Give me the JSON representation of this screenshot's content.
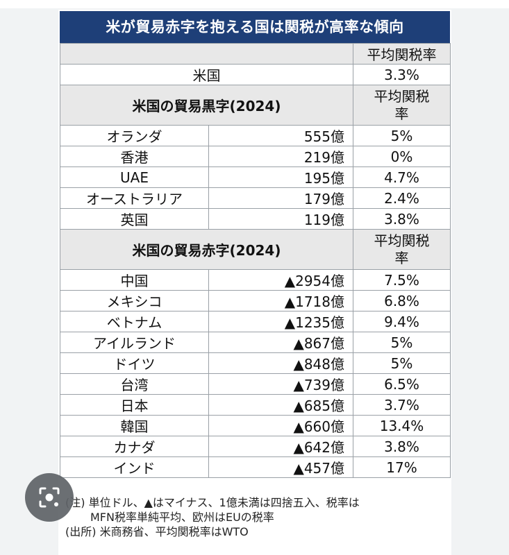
{
  "title": "米が貿易赤字を抱える国は関税が高率な傾向",
  "top_header": {
    "rate_label": "平均関税率"
  },
  "us_row": {
    "name": "米国",
    "rate": "3.3%"
  },
  "surplus_section": {
    "title": "米国の貿易黒字(2024)",
    "rate_label_1": "平均関税",
    "rate_label_2": "率",
    "rows": [
      {
        "country": "オランダ",
        "value": "555億",
        "rate": "5%"
      },
      {
        "country": "香港",
        "value": "219億",
        "rate": "0%"
      },
      {
        "country": "UAE",
        "value": "195億",
        "rate": "4.7%"
      },
      {
        "country": "オーストラリア",
        "value": "179億",
        "rate": "2.4%"
      },
      {
        "country": "英国",
        "value": "119億",
        "rate": "3.8%"
      }
    ]
  },
  "deficit_section": {
    "title": "米国の貿易赤字(2024)",
    "rate_label_1": "平均関税",
    "rate_label_2": "率",
    "rows": [
      {
        "country": "中国",
        "value": "▲2954億",
        "rate": "7.5%"
      },
      {
        "country": "メキシコ",
        "value": "▲1718億",
        "rate": "6.8%"
      },
      {
        "country": "ベトナム",
        "value": "▲1235億",
        "rate": "9.4%"
      },
      {
        "country": "アイルランド",
        "value": "▲867億",
        "rate": "5%"
      },
      {
        "country": "ドイツ",
        "value": "▲848億",
        "rate": "5%"
      },
      {
        "country": "台湾",
        "value": "▲739億",
        "rate": "6.5%"
      },
      {
        "country": "日本",
        "value": "▲685億",
        "rate": "3.7%"
      },
      {
        "country": "韓国",
        "value": "▲660億",
        "rate": "13.4%"
      },
      {
        "country": "カナダ",
        "value": "▲642億",
        "rate": "3.8%"
      },
      {
        "country": "インド",
        "value": "▲457億",
        "rate": "17%"
      }
    ]
  },
  "notes": {
    "line1": "(注) 単位ドル、▲はマイナス、1億未満は四捨五入、税率は",
    "line2": "MFN税率単純平均、欧州はEUの税率",
    "line3": "(出所) 米商務省、平均関税率はWTO"
  },
  "icons": {
    "lens": "image-search-lens-icon"
  },
  "colors": {
    "title_bg": "#1e3f78",
    "header_bg": "#e8e8e8"
  }
}
